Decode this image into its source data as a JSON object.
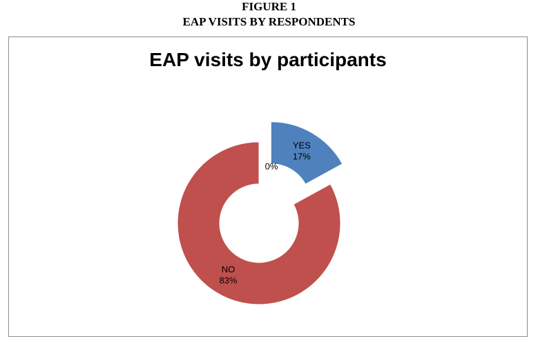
{
  "figure": {
    "number": "FIGURE 1",
    "title": "EAP VISITS BY RESPONDENTS"
  },
  "chart_data": {
    "type": "pie",
    "style": "exploded-doughnut",
    "title": "EAP visits by participants",
    "legend": "none",
    "slices": [
      {
        "name": "YES",
        "value": 17,
        "label": "17%",
        "color": "#4f81bd",
        "exploded": true
      },
      {
        "name": "",
        "value": 0,
        "label": "0%",
        "color": "#9bbb59",
        "exploded": true
      },
      {
        "name": "NO",
        "value": 83,
        "label": "83%",
        "color": "#c0504d",
        "exploded": false
      }
    ]
  }
}
